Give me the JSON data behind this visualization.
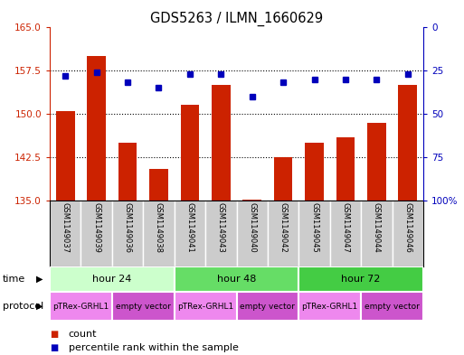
{
  "title": "GDS5263 / ILMN_1660629",
  "samples": [
    "GSM1149037",
    "GSM1149039",
    "GSM1149036",
    "GSM1149038",
    "GSM1149041",
    "GSM1149043",
    "GSM1149040",
    "GSM1149042",
    "GSM1149045",
    "GSM1149047",
    "GSM1149044",
    "GSM1149046"
  ],
  "counts": [
    150.5,
    160.0,
    145.0,
    140.5,
    151.5,
    155.0,
    135.2,
    142.5,
    145.0,
    146.0,
    148.5,
    155.0
  ],
  "percentiles": [
    72,
    74,
    68,
    65,
    73,
    73,
    60,
    68,
    70,
    70,
    70,
    73
  ],
  "ylim_left": [
    135,
    165
  ],
  "ylim_right": [
    0,
    100
  ],
  "yticks_left": [
    135,
    142.5,
    150,
    157.5,
    165
  ],
  "yticks_right": [
    0,
    25,
    50,
    75,
    100
  ],
  "bar_color": "#cc2200",
  "dot_color": "#0000bb",
  "time_groups": [
    {
      "label": "hour 24",
      "start": 0,
      "end": 4,
      "color": "#ccffcc"
    },
    {
      "label": "hour 48",
      "start": 4,
      "end": 8,
      "color": "#66dd66"
    },
    {
      "label": "hour 72",
      "start": 8,
      "end": 12,
      "color": "#44cc44"
    }
  ],
  "protocol_groups": [
    {
      "label": "pTRex-GRHL1",
      "start": 0,
      "end": 2,
      "color": "#ee88ee"
    },
    {
      "label": "empty vector",
      "start": 2,
      "end": 4,
      "color": "#cc55cc"
    },
    {
      "label": "pTRex-GRHL1",
      "start": 4,
      "end": 6,
      "color": "#ee88ee"
    },
    {
      "label": "empty vector",
      "start": 6,
      "end": 8,
      "color": "#cc55cc"
    },
    {
      "label": "pTRex-GRHL1",
      "start": 8,
      "end": 10,
      "color": "#ee88ee"
    },
    {
      "label": "empty vector",
      "start": 10,
      "end": 12,
      "color": "#cc55cc"
    }
  ],
  "sample_row_color": "#cccccc",
  "background_color": "#ffffff",
  "left_axis_color": "#cc2200",
  "right_axis_color": "#0000bb",
  "grid_color": "#333333",
  "border_color": "#000000"
}
